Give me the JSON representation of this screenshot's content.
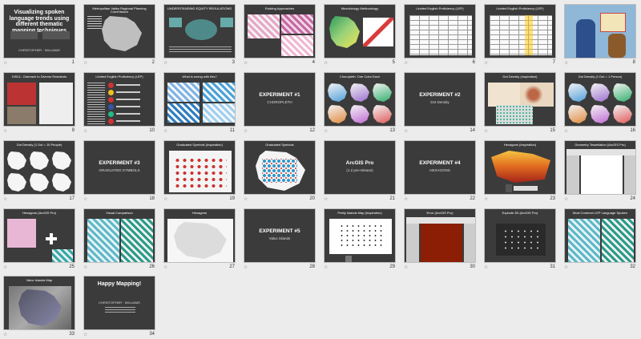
{
  "view": "slide-sorter",
  "star_glyph": "☆",
  "slides": [
    {
      "n": "1",
      "kind": "title",
      "title": "Visualizing spoken language trends using different thematic mapping techniques",
      "sub": "CHRISTOPHER · WILLIAMS"
    },
    {
      "n": "2",
      "kind": "map-dark",
      "title": "Metropolitan Valley Regional Planning Commission"
    },
    {
      "n": "3",
      "kind": "diagram",
      "title": "UNDERSTANDING EQUITY REGULATIONS"
    },
    {
      "n": "4",
      "kind": "maps-pink",
      "title": "Existing Approaches"
    },
    {
      "n": "5",
      "kind": "maps-green",
      "title": "Microbiology Methodology"
    },
    {
      "n": "6",
      "kind": "table",
      "title": "Limited English Proficiency (LEP)"
    },
    {
      "n": "7",
      "kind": "spreadsheet",
      "title": "Limited English Proficiency (LEP)"
    },
    {
      "n": "8",
      "kind": "photo",
      "title": ""
    },
    {
      "n": "9",
      "kind": "photos",
      "title": "DISCL: Outreach to Diverse Residents"
    },
    {
      "n": "10",
      "kind": "flags",
      "title": "Limited English Proficiency (LEP)"
    },
    {
      "n": "11",
      "kind": "maps-blue",
      "title": "What is wrong with this?"
    },
    {
      "n": "12",
      "kind": "section",
      "title": "EXPERIMENT #1",
      "sub": "CHOROPLETH"
    },
    {
      "n": "13",
      "kind": "choropleth-grid",
      "title": "Choropleth: One Color Each"
    },
    {
      "n": "14",
      "kind": "section",
      "title": "EXPERIMENT #2",
      "sub": "Dot Density"
    },
    {
      "n": "15",
      "kind": "dotmap",
      "title": "Dot Density (Inspiration)"
    },
    {
      "n": "16",
      "kind": "choropleth-grid",
      "title": "Dot Density (1 Dot = 1 Person)"
    },
    {
      "n": "17",
      "kind": "white-grid",
      "title": "Dot Density (1 Dot = 10 People)"
    },
    {
      "n": "18",
      "kind": "section",
      "title": "EXPERIMENT #3",
      "sub": "GRADUATED SYMBOLS"
    },
    {
      "n": "19",
      "kind": "usmap",
      "title": "Graduated Symbols (Inspiration)"
    },
    {
      "n": "20",
      "kind": "symbols",
      "title": "Graduated Symbols"
    },
    {
      "n": "21",
      "kind": "section",
      "title": "ArcGIS Pro",
      "sub": "(1.2 pre-release)"
    },
    {
      "n": "22",
      "kind": "section",
      "title": "EXPERIMENT #4",
      "sub": "HEXAGONS"
    },
    {
      "n": "23",
      "kind": "hexmap",
      "title": "Hexagons (Inspiration)"
    },
    {
      "n": "24",
      "kind": "app",
      "title": "Geometry Tessellation (ArcGIS Pro)"
    },
    {
      "n": "25",
      "kind": "hexpink",
      "title": "Hexagons (ArcGIS Pro)"
    },
    {
      "n": "26",
      "kind": "maps-teal",
      "title": "Visual Comparison"
    },
    {
      "n": "27",
      "kind": "white-map",
      "title": "Hexagons"
    },
    {
      "n": "28",
      "kind": "section",
      "title": "EXPERIMENT #5",
      "sub": "Valuc Islands"
    },
    {
      "n": "29",
      "kind": "pointmap",
      "title": "Pretty Islands Map (Inspiration)"
    },
    {
      "n": "30",
      "kind": "app-dark",
      "title": "Error (ArcGIS Pro)"
    },
    {
      "n": "31",
      "kind": "dark-points",
      "title": "Explode 3D (ArcGIS Pro)"
    },
    {
      "n": "32",
      "kind": "maps-teal",
      "title": "Most Common LEP Language Spoken"
    },
    {
      "n": "33",
      "kind": "hillmap",
      "title": "Valuc Islands Map"
    },
    {
      "n": "34",
      "kind": "closing",
      "title": "Happy Mapping!",
      "sub": "CHRISTOPHER · WILLIAMS"
    }
  ]
}
